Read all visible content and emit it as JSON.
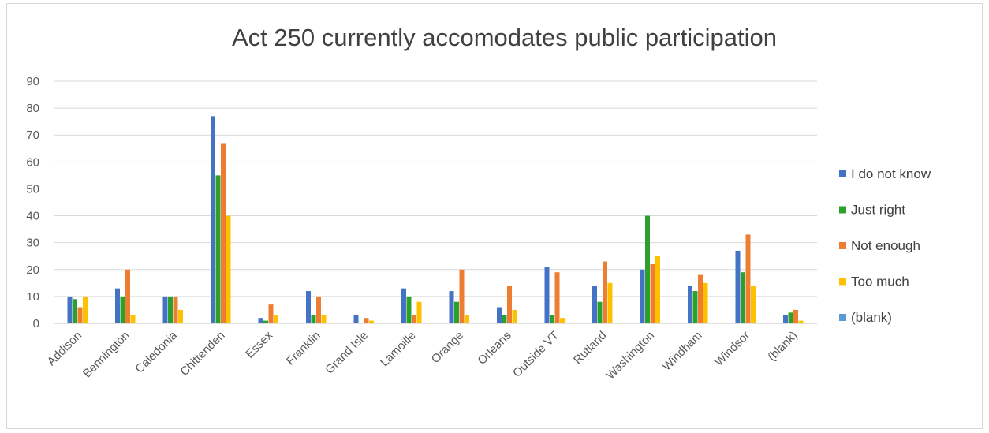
{
  "chart_data": {
    "type": "bar",
    "title": "Act 250 currently accomodates public participation",
    "xlabel": "",
    "ylabel": "",
    "ylim": [
      0,
      90
    ],
    "yticks": [
      0,
      10,
      20,
      30,
      40,
      50,
      60,
      70,
      80,
      90
    ],
    "grid": true,
    "legend_position": "right",
    "categories": [
      "Addison",
      "Bennington",
      "Caledonia",
      "Chittenden",
      "Essex",
      "Franklin",
      "Grand Isle",
      "Lamoille",
      "Orange",
      "Orleans",
      "Outside VT",
      "Rutland",
      "Washington",
      "Windham",
      "Windsor",
      "(blank)"
    ],
    "series": [
      {
        "name": "I do not know",
        "color": "#4472c4",
        "values": [
          10,
          13,
          10,
          77,
          2,
          12,
          3,
          13,
          12,
          6,
          21,
          14,
          20,
          14,
          27,
          3
        ]
      },
      {
        "name": "Just right",
        "color": "#2ca02c",
        "values": [
          9,
          10,
          10,
          55,
          1,
          3,
          0,
          10,
          8,
          3,
          3,
          8,
          40,
          12,
          19,
          4
        ]
      },
      {
        "name": "Not enough",
        "color": "#ed7d31",
        "values": [
          6,
          20,
          10,
          67,
          7,
          10,
          2,
          3,
          20,
          14,
          19,
          23,
          22,
          18,
          33,
          5
        ]
      },
      {
        "name": "Too much",
        "color": "#ffc000",
        "values": [
          10,
          3,
          5,
          40,
          3,
          3,
          1,
          8,
          3,
          5,
          2,
          15,
          25,
          15,
          14,
          1
        ]
      },
      {
        "name": "(blank)",
        "color": "#5b9bd5",
        "values": [
          0,
          0,
          0,
          0,
          0,
          0,
          0,
          0,
          0,
          0,
          0,
          0,
          0,
          0,
          0,
          0
        ]
      }
    ]
  }
}
